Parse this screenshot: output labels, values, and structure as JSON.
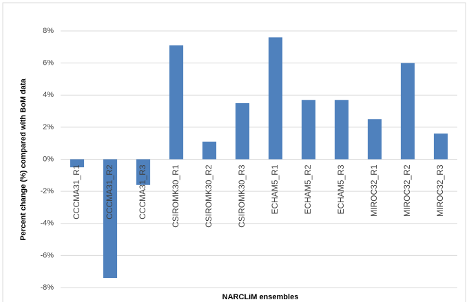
{
  "chart_data": {
    "type": "bar",
    "y_label": "Percent change (%) compared with BoM data",
    "x_label": "NARCLiM ensembles",
    "categories": [
      "CCCMA31_R1",
      "CCCMA31_R2",
      "CCCMA31_R3",
      "CSIROMK30_R1",
      "CSIROMK30_R2",
      "CSIROMK30_R3",
      "ECHAM5_R1",
      "ECHAM5_R2",
      "ECHAM5_R3",
      "MIROC32_R1",
      "MIROC32_R2",
      "MIROC32_R3"
    ],
    "values": [
      -0.5,
      -7.4,
      -1.6,
      7.1,
      1.1,
      3.5,
      7.6,
      3.7,
      3.7,
      2.5,
      6.0,
      1.6
    ],
    "color": "#4f81bd",
    "ylim": [
      -8,
      8
    ],
    "yticks": [
      {
        "value": -8,
        "label": "-8%"
      },
      {
        "value": -6,
        "label": "-6%"
      },
      {
        "value": -4,
        "label": "-4%"
      },
      {
        "value": -2,
        "label": "-2%"
      },
      {
        "value": 0,
        "label": "0%"
      },
      {
        "value": 2,
        "label": "2%"
      },
      {
        "value": 4,
        "label": "4%"
      },
      {
        "value": 6,
        "label": "6%"
      },
      {
        "value": 8,
        "label": "8%"
      }
    ],
    "grid": true
  }
}
